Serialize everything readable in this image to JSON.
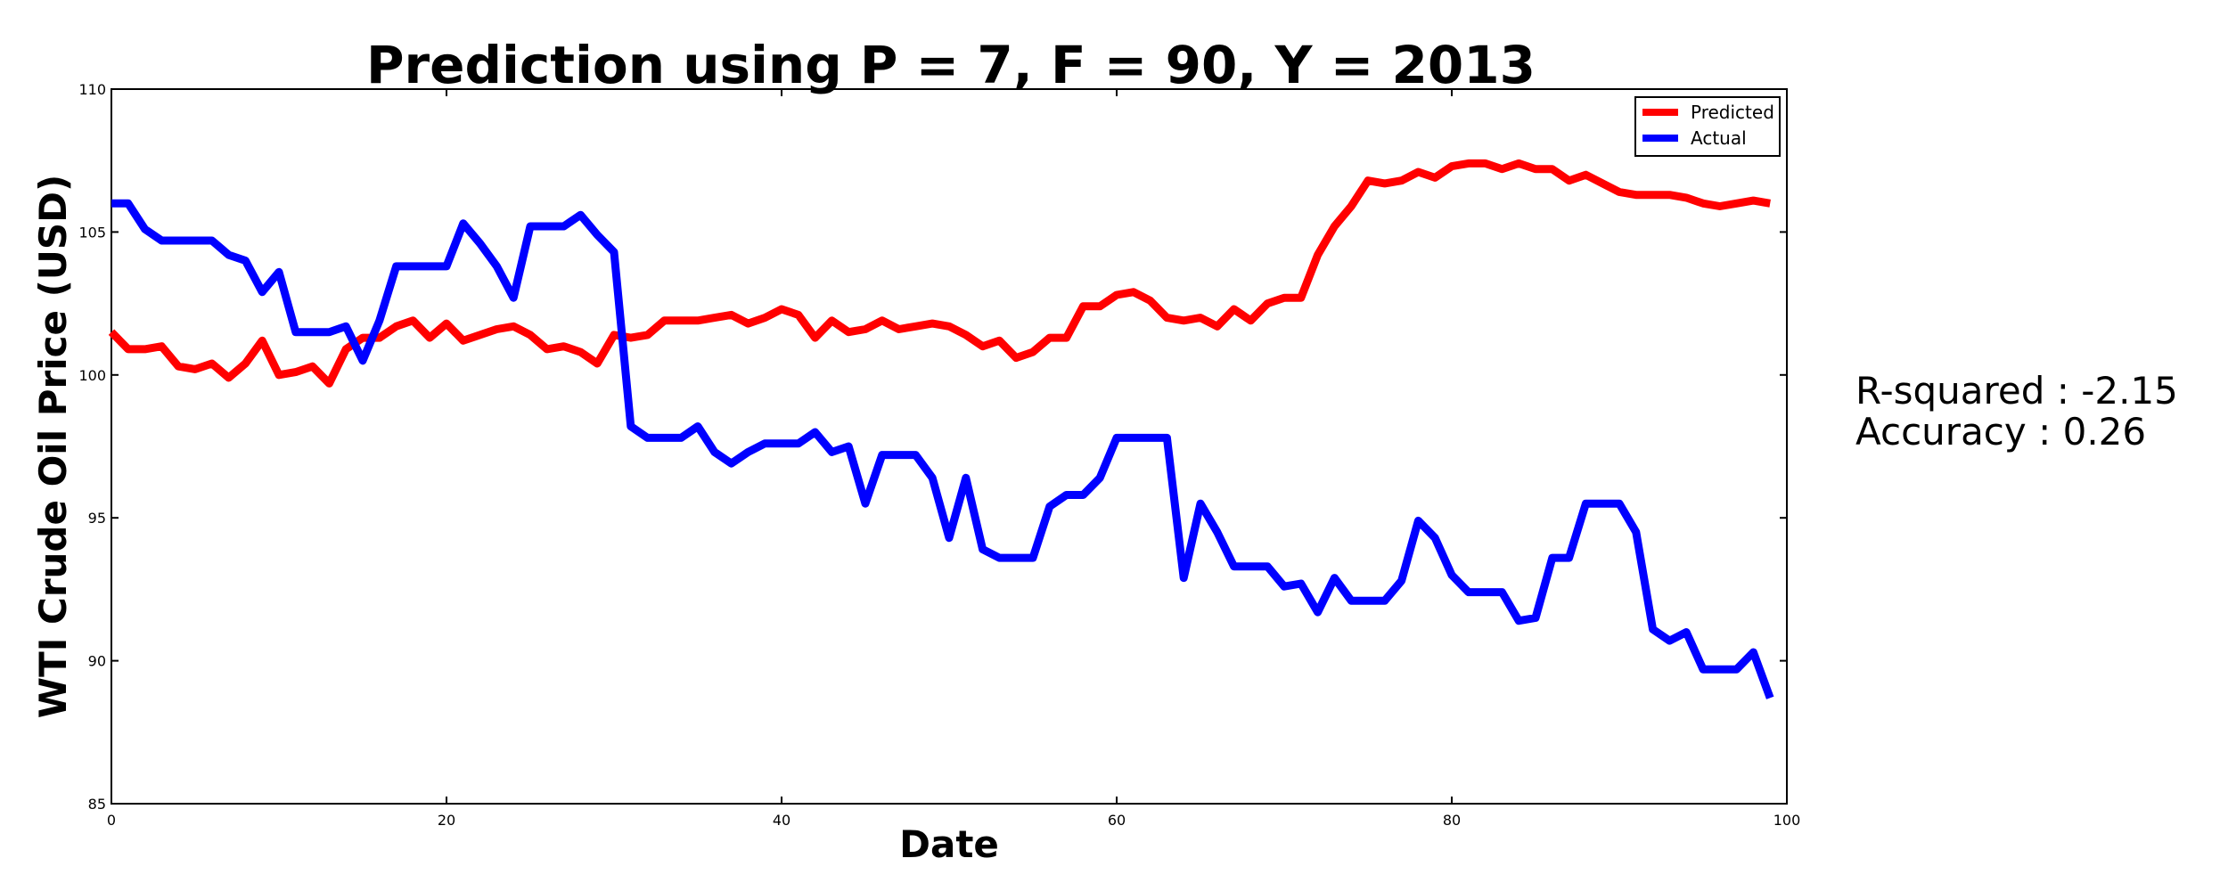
{
  "stats": {
    "r_squared": "R-squared : -2.15",
    "accuracy": "Accuracy : 0.26"
  },
  "chart_data": {
    "type": "line",
    "title": "Prediction using P = 7, F = 90, Y = 2013",
    "xlabel": "Date",
    "ylabel": "WTI Crude Oil Price (USD)",
    "xlim": [
      0,
      100
    ],
    "ylim": [
      85,
      110
    ],
    "xticks": [
      0,
      20,
      40,
      60,
      80,
      100
    ],
    "yticks": [
      85,
      90,
      95,
      100,
      105,
      110
    ],
    "grid": false,
    "legend_position": "top-right",
    "series": [
      {
        "name": "Predicted",
        "color": "#ff0000",
        "x": [
          0,
          1,
          2,
          3,
          4,
          5,
          6,
          7,
          8,
          9,
          10,
          11,
          12,
          13,
          14,
          15,
          16,
          17,
          18,
          19,
          20,
          21,
          22,
          23,
          24,
          25,
          26,
          27,
          28,
          29,
          30,
          31,
          32,
          33,
          34,
          35,
          36,
          37,
          38,
          39,
          40,
          41,
          42,
          43,
          44,
          45,
          46,
          47,
          48,
          49,
          50,
          51,
          52,
          53,
          54,
          55,
          56,
          57,
          58,
          59,
          60,
          61,
          62,
          63,
          64,
          65,
          66,
          67,
          68,
          69,
          70,
          71,
          72,
          73,
          74,
          75,
          76,
          77,
          78,
          79,
          80,
          81,
          82,
          83,
          84,
          85,
          86,
          87,
          88,
          89,
          90,
          91,
          92,
          93,
          94,
          95,
          96,
          97,
          98,
          99
        ],
        "values": [
          101.5,
          100.9,
          100.9,
          101.0,
          100.3,
          100.2,
          100.4,
          99.9,
          100.4,
          101.2,
          100.0,
          100.1,
          100.3,
          99.7,
          100.9,
          101.3,
          101.3,
          101.7,
          101.9,
          101.3,
          101.8,
          101.2,
          101.4,
          101.6,
          101.7,
          101.4,
          100.9,
          101.0,
          100.8,
          100.4,
          101.4,
          101.3,
          101.4,
          101.9,
          101.9,
          101.9,
          102.0,
          102.1,
          101.8,
          102.0,
          102.3,
          102.1,
          101.3,
          101.9,
          101.5,
          101.6,
          101.9,
          101.6,
          101.7,
          101.8,
          101.7,
          101.4,
          101.0,
          101.2,
          100.6,
          100.8,
          101.3,
          101.3,
          102.4,
          102.4,
          102.8,
          102.9,
          102.6,
          102.0,
          101.9,
          102.0,
          101.7,
          102.3,
          101.9,
          102.5,
          102.7,
          102.7,
          104.2,
          105.2,
          105.9,
          106.8,
          106.7,
          106.8,
          107.1,
          106.9,
          107.3,
          107.4,
          107.4,
          107.2,
          107.4,
          107.2,
          107.2,
          106.8,
          107.0,
          106.7,
          106.4,
          106.3,
          106.3,
          106.3,
          106.2,
          106.0,
          105.9,
          106.0,
          106.1,
          106.0
        ]
      },
      {
        "name": "Actual",
        "color": "#0000ff",
        "x": [
          0,
          1,
          2,
          3,
          4,
          5,
          6,
          7,
          8,
          9,
          10,
          11,
          12,
          13,
          14,
          15,
          16,
          17,
          18,
          19,
          20,
          21,
          22,
          23,
          24,
          25,
          26,
          27,
          28,
          29,
          30,
          31,
          32,
          33,
          34,
          35,
          36,
          37,
          38,
          39,
          40,
          41,
          42,
          43,
          44,
          45,
          46,
          47,
          48,
          49,
          50,
          51,
          52,
          53,
          54,
          55,
          56,
          57,
          58,
          59,
          60,
          61,
          62,
          63,
          64,
          65,
          66,
          67,
          68,
          69,
          70,
          71,
          72,
          73,
          74,
          75,
          76,
          77,
          78,
          79,
          80,
          81,
          82,
          83,
          84,
          85,
          86,
          87,
          88,
          89,
          90,
          91,
          92,
          93,
          94,
          95,
          96,
          97,
          98,
          99
        ],
        "values": [
          106.0,
          106.0,
          105.1,
          104.7,
          104.7,
          104.7,
          104.7,
          104.2,
          104.0,
          102.9,
          103.6,
          101.5,
          101.5,
          101.5,
          101.7,
          100.5,
          101.9,
          103.8,
          103.8,
          103.8,
          103.8,
          105.3,
          104.6,
          103.8,
          102.7,
          105.2,
          105.2,
          105.2,
          105.6,
          104.9,
          104.3,
          98.2,
          97.8,
          97.8,
          97.8,
          98.2,
          97.3,
          96.9,
          97.3,
          97.6,
          97.6,
          97.6,
          98.0,
          97.3,
          97.5,
          95.5,
          97.2,
          97.2,
          97.2,
          96.4,
          94.3,
          96.4,
          93.9,
          93.6,
          93.6,
          93.6,
          95.4,
          95.8,
          95.8,
          96.4,
          97.8,
          97.8,
          97.8,
          97.8,
          92.9,
          95.5,
          94.5,
          93.3,
          93.3,
          93.3,
          92.6,
          92.7,
          91.7,
          92.9,
          92.1,
          92.1,
          92.1,
          92.8,
          94.9,
          94.3,
          93.0,
          92.4,
          92.4,
          92.4,
          91.4,
          91.5,
          93.6,
          93.6,
          95.5,
          95.5,
          95.5,
          94.5,
          91.1,
          90.7,
          91.0,
          89.7,
          89.7,
          89.7,
          90.3,
          88.7
        ]
      }
    ]
  }
}
